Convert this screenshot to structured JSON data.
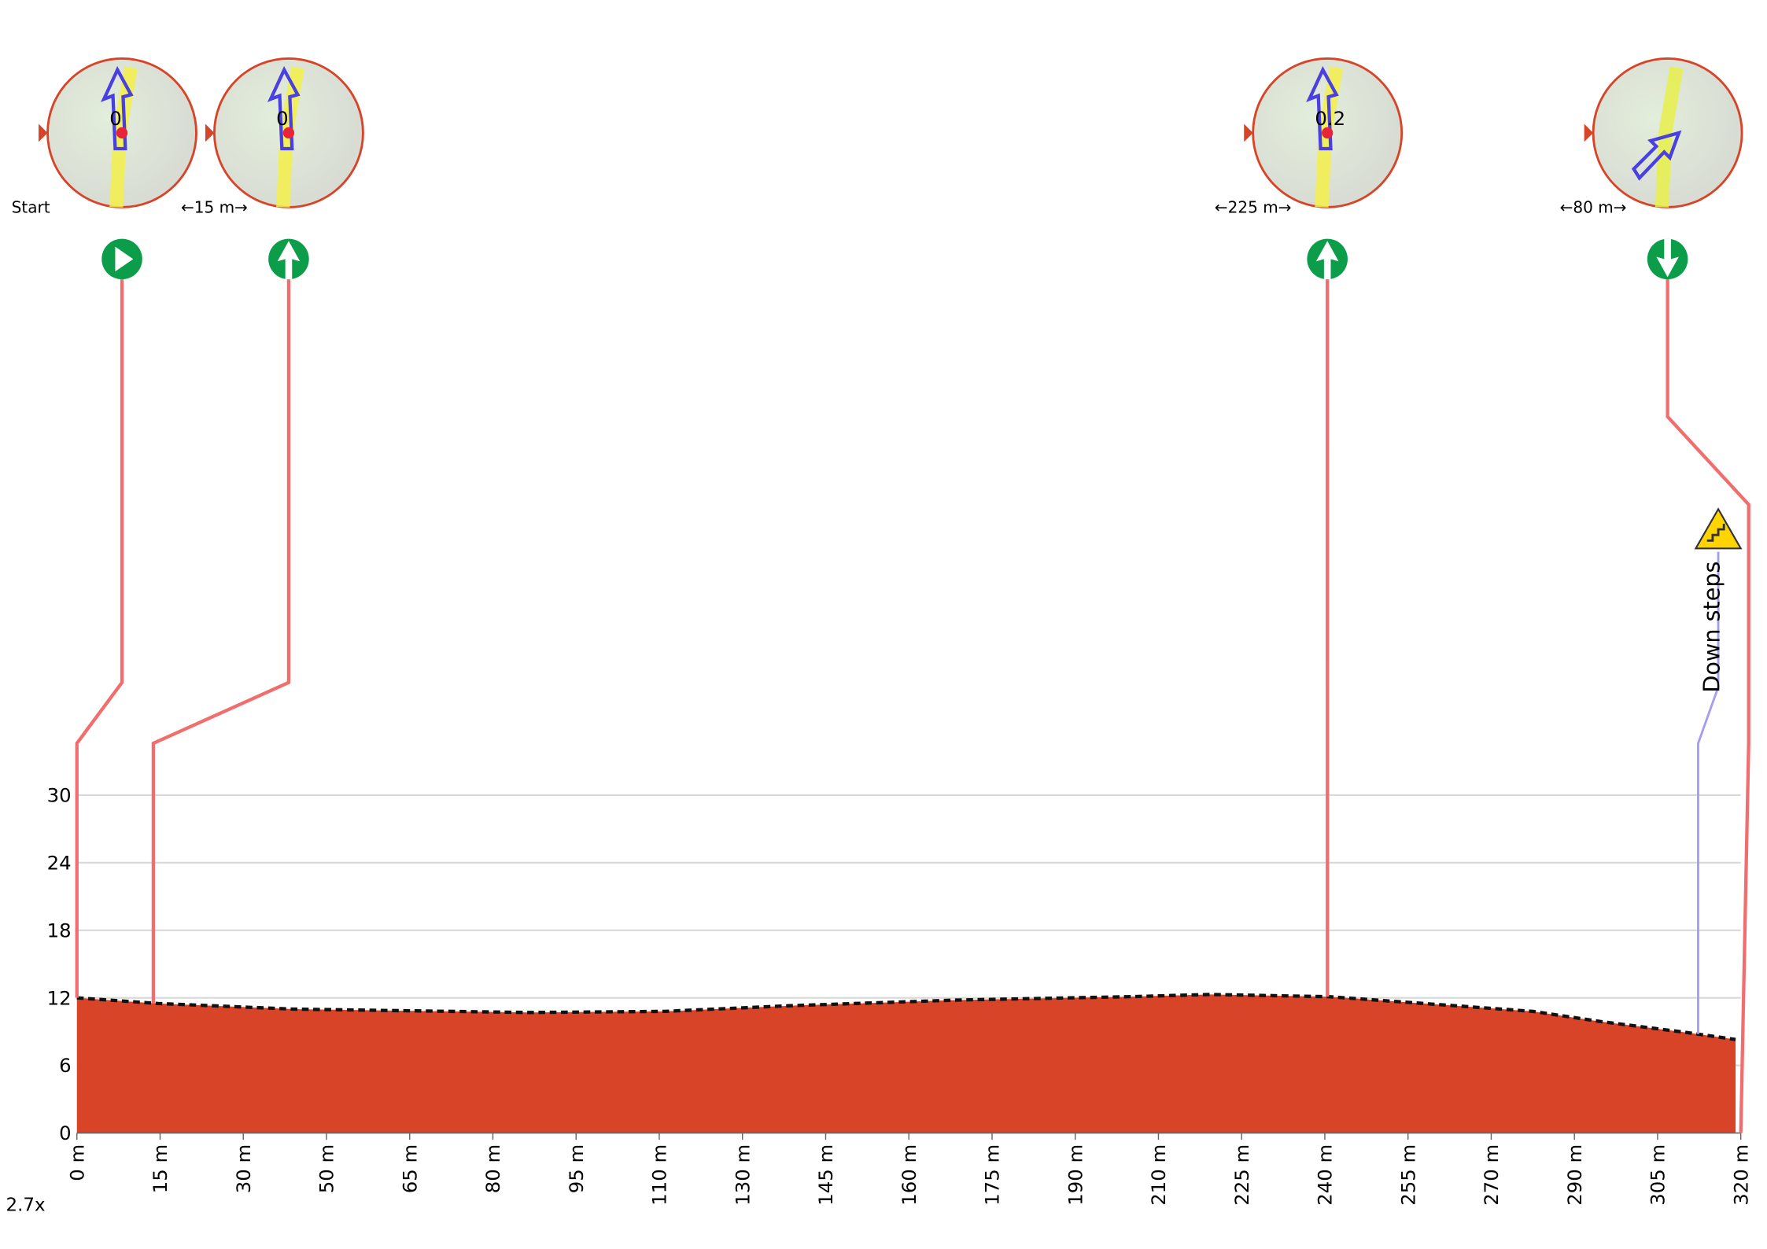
{
  "chart_data": {
    "type": "area",
    "color": "#d84427",
    "x": [
      0,
      15.6,
      41.6,
      87,
      113,
      137,
      169,
      202,
      218,
      241,
      256,
      280,
      293,
      310,
      319
    ],
    "values": [
      12.0,
      11.5,
      11.0,
      10.7,
      10.8,
      11.3,
      11.8,
      12.1,
      12.3,
      12.1,
      11.6,
      10.8,
      9.9,
      8.9,
      8.3
    ],
    "xlim": [
      0,
      320
    ],
    "xticks": [
      {
        "value": 0,
        "label": "0 m"
      },
      {
        "value": 16,
        "label": "15 m"
      },
      {
        "value": 32,
        "label": "30 m"
      },
      {
        "value": 48,
        "label": "50 m"
      },
      {
        "value": 64,
        "label": "65 m"
      },
      {
        "value": 80,
        "label": "80 m"
      },
      {
        "value": 96,
        "label": "95 m"
      },
      {
        "value": 112,
        "label": "110 m"
      },
      {
        "value": 128,
        "label": "130 m"
      },
      {
        "value": 144,
        "label": "145 m"
      },
      {
        "value": 160,
        "label": "160 m"
      },
      {
        "value": 176,
        "label": "175 m"
      },
      {
        "value": 192,
        "label": "190 m"
      },
      {
        "value": 208,
        "label": "210 m"
      },
      {
        "value": 224,
        "label": "225 m"
      },
      {
        "value": 240,
        "label": "240 m"
      },
      {
        "value": 256,
        "label": "255 m"
      },
      {
        "value": 272,
        "label": "270 m"
      },
      {
        "value": 288,
        "label": "290 m"
      },
      {
        "value": 304,
        "label": "305 m"
      },
      {
        "value": 320,
        "label": "320 m"
      }
    ],
    "ylim": [
      0,
      30
    ],
    "yticks": [
      0,
      6,
      12,
      18,
      24,
      30
    ],
    "grid": true,
    "waypoints": [
      {
        "label": "Start",
        "map_label": "0",
        "x": 0
      },
      {
        "label": "←15 m→",
        "map_label": "0",
        "x": 14.7
      },
      {
        "label": "←225 m→",
        "map_label": "0.2",
        "x": 240.5
      },
      {
        "label": "←80 m→",
        "x": 320
      }
    ],
    "annotations": [
      {
        "text": "Down steps",
        "x": 311.8
      }
    ],
    "zoom": "2.7x"
  }
}
